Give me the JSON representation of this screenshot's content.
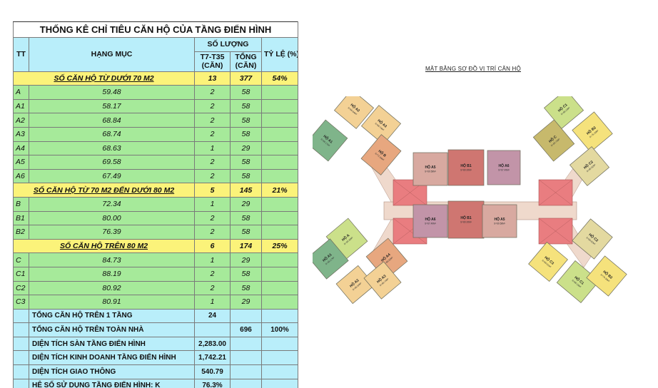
{
  "table": {
    "title": "THỐNG KÊ CHỈ TIÊU CĂN HỘ CỦA  TẦNG ĐIỂN HÌNH",
    "headers": {
      "tt": "TT",
      "hang_muc": "HẠNG MỤC",
      "so_luong": "SỐ LƯỢNG",
      "t7_t35": "T7-T35 (CĂN)",
      "tong": "TỔNG (CĂN)",
      "ty_le": "TỶ LỆ (%)"
    },
    "groups": [
      {
        "name": "SỐ CĂN HỘ TỪ DƯỚI 70 M2",
        "per_floor": "13",
        "total": "377",
        "ratio": "54%",
        "items": [
          {
            "id": "A",
            "area": "59.48",
            "per_floor": "2",
            "total": "58"
          },
          {
            "id": "A1",
            "area": "58.17",
            "per_floor": "2",
            "total": "58"
          },
          {
            "id": "A2",
            "area": "68.84",
            "per_floor": "2",
            "total": "58"
          },
          {
            "id": "A3",
            "area": "68.74",
            "per_floor": "2",
            "total": "58"
          },
          {
            "id": "A4",
            "area": "68.63",
            "per_floor": "1",
            "total": "29"
          },
          {
            "id": "A5",
            "area": "69.58",
            "per_floor": "2",
            "total": "58"
          },
          {
            "id": "A6",
            "area": "67.49",
            "per_floor": "2",
            "total": "58"
          }
        ]
      },
      {
        "name": "SỐ CĂN HỘ TỪ 70 M2 ĐẾN DƯỚI 80 M2",
        "per_floor": "5",
        "total": "145",
        "ratio": "21%",
        "items": [
          {
            "id": "B",
            "area": "72.34",
            "per_floor": "1",
            "total": "29"
          },
          {
            "id": "B1",
            "area": "80.00",
            "per_floor": "2",
            "total": "58"
          },
          {
            "id": "B2",
            "area": "76.39",
            "per_floor": "2",
            "total": "58"
          }
        ]
      },
      {
        "name": "SỐ CĂN HỘ TRÊN 80 M2",
        "per_floor": "6",
        "total": "174",
        "ratio": "25%",
        "items": [
          {
            "id": "C",
            "area": "84.73",
            "per_floor": "1",
            "total": "29"
          },
          {
            "id": "C1",
            "area": "88.19",
            "per_floor": "2",
            "total": "58"
          },
          {
            "id": "C2",
            "area": "80.92",
            "per_floor": "2",
            "total": "58"
          },
          {
            "id": "C3",
            "area": "80.91",
            "per_floor": "1",
            "total": "29"
          }
        ]
      }
    ],
    "summary": [
      {
        "label": "TỔNG CĂN HỘ TRÊN 1 TẦNG",
        "per_floor": "24",
        "total": "",
        "ratio": ""
      },
      {
        "label": "TỔNG CĂN HỘ TRÊN TOÀN NHÀ",
        "per_floor": "",
        "total": "696",
        "ratio": "100%"
      },
      {
        "label": "DIỆN TÍCH SÀN TẦNG ĐIỂN HÌNH",
        "per_floor": "2,283.00",
        "total": "",
        "ratio": ""
      },
      {
        "label": "DIỆN TÍCH KINH DOANH TẦNG ĐIỂN HÌNH",
        "per_floor": "1,742.21",
        "total": "",
        "ratio": ""
      },
      {
        "label": "DIỆN TÍCH GIAO THÔNG",
        "per_floor": "540.79",
        "total": "",
        "ratio": ""
      },
      {
        "label": "HỆ SỐ SỬ DỤNG TẦNG ĐIỂN HÌNH: K",
        "per_floor": "76.3%",
        "total": "",
        "ratio": ""
      }
    ],
    "colors": {
      "header_bg": "#b9eefa",
      "group_bg": "#fbf37a",
      "item_bg": "#a6ea9a"
    }
  },
  "plan": {
    "caption": "MẶT BẰNG SƠ ĐỒ VỊ TRÍ CĂN HỘ",
    "units": [
      {
        "name": "HỘ A2",
        "area": "S=68.84M²",
        "color": "#f3d195"
      },
      {
        "name": "HỘ A3",
        "area": "S=68.74M²",
        "color": "#f3d195"
      },
      {
        "name": "HỘ A1",
        "area": "S=58.17M²",
        "color": "#7fb48a"
      },
      {
        "name": "HỘ B",
        "area": "S=72.34M²",
        "color": "#e7a77f"
      },
      {
        "name": "HỘ A5",
        "area": "S=69.58M²",
        "color": "#d8a9a0"
      },
      {
        "name": "HỘ B1",
        "area": "S=80.00M²",
        "color": "#cf7671"
      },
      {
        "name": "HỘ A6",
        "area": "S=67.49M²",
        "color": "#c294a8"
      },
      {
        "name": "HỘ C1",
        "area": "S=88.19M²",
        "color": "#cbe08a"
      },
      {
        "name": "HỘ B2",
        "area": "S=76.39M²",
        "color": "#f5e27c"
      },
      {
        "name": "HỘ C",
        "area": "S=84.73M²",
        "color": "#c7b96c"
      },
      {
        "name": "HỘ C2",
        "area": "S=80.92M²",
        "color": "#e3d9a0"
      },
      {
        "name": "HỘ A",
        "area": "S=59.48M²",
        "color": "#cbe08a"
      },
      {
        "name": "HỘ A4",
        "area": "S=68.63M²",
        "color": "#e7a77f"
      },
      {
        "name": "HỘ A6",
        "area": "S=67.49M²",
        "color": "#c294a8"
      },
      {
        "name": "HỘ B1",
        "area": "S=80.00M²",
        "color": "#cf7671"
      },
      {
        "name": "HỘ A5",
        "area": "S=69.58M²",
        "color": "#d8a9a0"
      },
      {
        "name": "HỘ C3",
        "area": "S=80.91M²",
        "color": "#f5e27c"
      },
      {
        "name": "HỘ C1",
        "area": "S=88.19M²",
        "color": "#cbe08a"
      },
      {
        "name": "HỘ C2",
        "area": "S=80.92M²",
        "color": "#e3d9a0"
      },
      {
        "name": "HỘ B2",
        "area": "S=76.39M²",
        "color": "#f5e27c"
      },
      {
        "name": "HỘ A1",
        "area": "S=58.17M²",
        "color": "#7fb48a"
      },
      {
        "name": "HỘ A2",
        "area": "S=68.84M²",
        "color": "#f3d195"
      },
      {
        "name": "HỘ A3",
        "area": "S=68.74M²",
        "color": "#f3d195"
      }
    ]
  }
}
